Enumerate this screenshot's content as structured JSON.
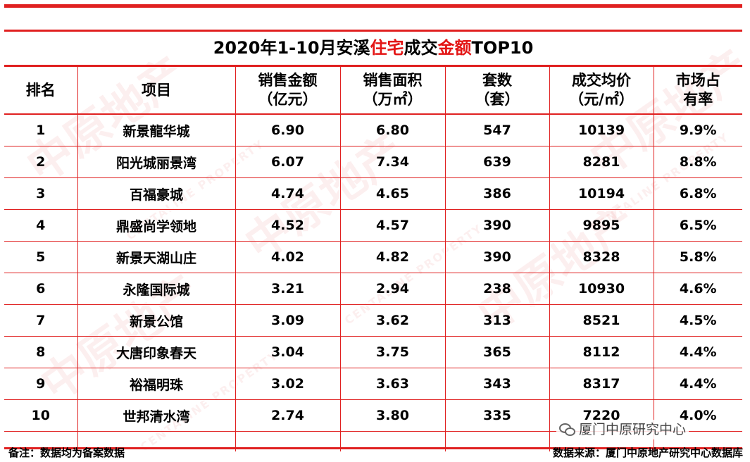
{
  "title": {
    "part1": "2020年1-10月安溪",
    "highlight1": "住宅",
    "part2": "成交",
    "highlight2": "金额",
    "part3": "TOP10"
  },
  "headers": [
    {
      "line1": "排名",
      "line2": ""
    },
    {
      "line1": "项目",
      "line2": ""
    },
    {
      "line1": "销售金额",
      "line2": "（亿元）"
    },
    {
      "line1": "销售面积",
      "line2": "（万㎡）"
    },
    {
      "line1": "套数",
      "line2": "（套）"
    },
    {
      "line1": "成交均价",
      "line2": "（元/㎡）"
    },
    {
      "line1": "市场占",
      "line2": "有率"
    }
  ],
  "rows": [
    [
      "1",
      "新景龍华城",
      "6.90",
      "6.80",
      "547",
      "10139",
      "9.9%"
    ],
    [
      "2",
      "阳光城丽景湾",
      "6.07",
      "7.34",
      "639",
      "8281",
      "8.8%"
    ],
    [
      "3",
      "百福豪城",
      "4.74",
      "4.65",
      "386",
      "10194",
      "6.8%"
    ],
    [
      "4",
      "鼎盛尚学领地",
      "4.52",
      "4.57",
      "390",
      "9895",
      "6.5%"
    ],
    [
      "5",
      "新景天湖山庄",
      "4.02",
      "4.82",
      "390",
      "8328",
      "5.8%"
    ],
    [
      "6",
      "永隆国际城",
      "3.21",
      "2.94",
      "238",
      "10930",
      "4.6%"
    ],
    [
      "7",
      "新景公馆",
      "3.09",
      "3.62",
      "313",
      "8521",
      "4.5%"
    ],
    [
      "8",
      "大唐印象春天",
      "3.04",
      "3.75",
      "365",
      "8112",
      "4.4%"
    ],
    [
      "9",
      "裕福明珠",
      "3.02",
      "3.63",
      "343",
      "8317",
      "4.4%"
    ],
    [
      "10",
      "世邦清水湾",
      "2.74",
      "3.80",
      "335",
      "7220",
      "4.0%"
    ]
  ],
  "footer": {
    "note": "备注：数据均为备案数据",
    "source": "数据来源：厦门中原地产研究中心数据库"
  },
  "watermark": {
    "brand_cn": "中原地产",
    "brand_en": "CENTALINE PROPERTY",
    "wechat_label": "厦门中原研究中心"
  },
  "colors": {
    "accent_red": "#e02020",
    "highlight_red": "#e31515"
  }
}
